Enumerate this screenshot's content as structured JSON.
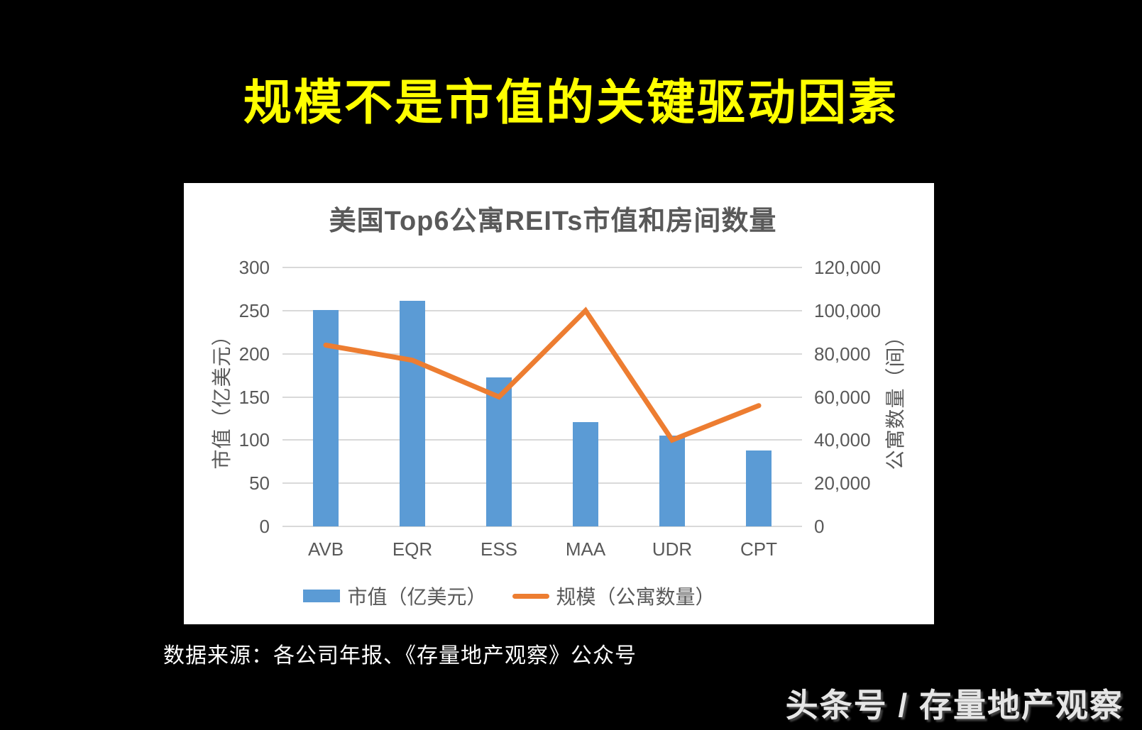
{
  "slide": {
    "title": "规模不是市值的关键驱动因素",
    "title_color": "#ffff00",
    "background_color": "#000000",
    "source_note": "数据来源：各公司年报、《存量地产观察》公众号",
    "watermark": "头条号 / 存量地产观察"
  },
  "chart_data": {
    "type": "bar",
    "subtype": "combo-bar-line-dual-axis",
    "title": "美国Top6公寓REITs市值和房间数量",
    "categories": [
      "AVB",
      "EQR",
      "ESS",
      "MAA",
      "UDR",
      "CPT"
    ],
    "series": [
      {
        "name": "市值（亿美元）",
        "type": "bar",
        "axis": "left",
        "color": "#5b9bd5",
        "values": [
          251,
          261,
          173,
          121,
          105,
          88
        ]
      },
      {
        "name": "规模（公寓数量）",
        "type": "line",
        "axis": "right",
        "color": "#ed7d31",
        "values": [
          84000,
          77000,
          60000,
          100000,
          40000,
          56000
        ]
      }
    ],
    "left_axis": {
      "title": "市值（亿美元）",
      "min": 0,
      "max": 300,
      "step": 50,
      "tick_labels": [
        "0",
        "50",
        "100",
        "150",
        "200",
        "250",
        "300"
      ]
    },
    "right_axis": {
      "title": "公寓数量（间）",
      "min": 0,
      "max": 120000,
      "step": 20000,
      "tick_labels": [
        "0",
        "20,000",
        "40,000",
        "60,000",
        "80,000",
        "100,000",
        "120,000"
      ]
    },
    "grid": true,
    "gridline_color": "#d9d9d9",
    "axis_text_color": "#595959",
    "legend_position": "bottom"
  }
}
